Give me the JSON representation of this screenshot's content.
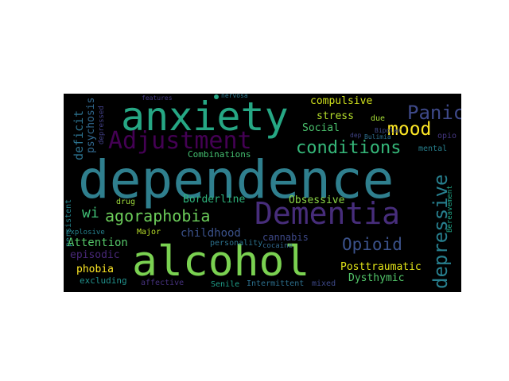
{
  "cloud_background": "#000000",
  "words": [
    {
      "text": "dependence",
      "color": "#2f7f8e"
    },
    {
      "text": "alcohol",
      "color": "#7ad151"
    },
    {
      "text": "anxiety",
      "color": "#26a784"
    },
    {
      "text": "Dementia",
      "color": "#472d7b"
    },
    {
      "text": "Adjustment",
      "color": "#440154"
    },
    {
      "text": "Panic",
      "color": "#3e4989"
    },
    {
      "text": "conditions",
      "color": "#35b779"
    },
    {
      "text": "mood",
      "color": "#fde725"
    },
    {
      "text": "agoraphobia",
      "color": "#6ccd5a"
    },
    {
      "text": "depressive",
      "color": "#277f8e"
    },
    {
      "text": "Opioid",
      "color": "#3b528b"
    },
    {
      "text": "compulsive",
      "color": "#d0e11c"
    },
    {
      "text": "stress",
      "color": "#b5de2b"
    },
    {
      "text": "Social",
      "color": "#4ac16d"
    },
    {
      "text": "due",
      "color": "#a5db36"
    },
    {
      "text": "deficit",
      "color": "#2c728e"
    },
    {
      "text": "psychosis",
      "color": "#31688e"
    },
    {
      "text": "depressed",
      "color": "#424086"
    },
    {
      "text": "features",
      "color": "#443983"
    },
    {
      "text": "nervosa",
      "color": "#2a788e"
    },
    {
      "text": "Bipolar",
      "color": "#3e4a89"
    },
    {
      "text": "Bulimia",
      "color": "#2d708e"
    },
    {
      "text": "dep",
      "color": "#414487"
    },
    {
      "text": "opio",
      "color": "#453781"
    },
    {
      "text": "mental",
      "color": "#27808e"
    },
    {
      "text": "Bereavement",
      "color": "#20a486"
    },
    {
      "text": "Combinations",
      "color": "#44bf70"
    },
    {
      "text": "Borderline",
      "color": "#2eb37c"
    },
    {
      "text": "Obsessive",
      "color": "#8bd646"
    },
    {
      "text": "wi",
      "color": "#3fbc73"
    },
    {
      "text": "drug",
      "color": "#9dd93b"
    },
    {
      "text": "persistent",
      "color": "#25858e"
    },
    {
      "text": "explosive",
      "color": "#26828e"
    },
    {
      "text": "Major",
      "color": "#b8de29"
    },
    {
      "text": "childhood",
      "color": "#3b528b"
    },
    {
      "text": "cannabis",
      "color": "#3e4989"
    },
    {
      "text": "personality",
      "color": "#2c728e"
    },
    {
      "text": "cocaine",
      "color": "#31688e"
    },
    {
      "text": "Attention",
      "color": "#54c568"
    },
    {
      "text": "episodic",
      "color": "#482878"
    },
    {
      "text": "Posttraumatic",
      "color": "#e2e418"
    },
    {
      "text": "phobia",
      "color": "#fde725"
    },
    {
      "text": "Dysthymic",
      "color": "#52c569"
    },
    {
      "text": "excluding",
      "color": "#21918c"
    },
    {
      "text": "affective",
      "color": "#46327e"
    },
    {
      "text": "Senile",
      "color": "#1f9e89"
    },
    {
      "text": "Intermittent",
      "color": "#2d708e"
    },
    {
      "text": "mixed",
      "color": "#3e4989"
    }
  ]
}
